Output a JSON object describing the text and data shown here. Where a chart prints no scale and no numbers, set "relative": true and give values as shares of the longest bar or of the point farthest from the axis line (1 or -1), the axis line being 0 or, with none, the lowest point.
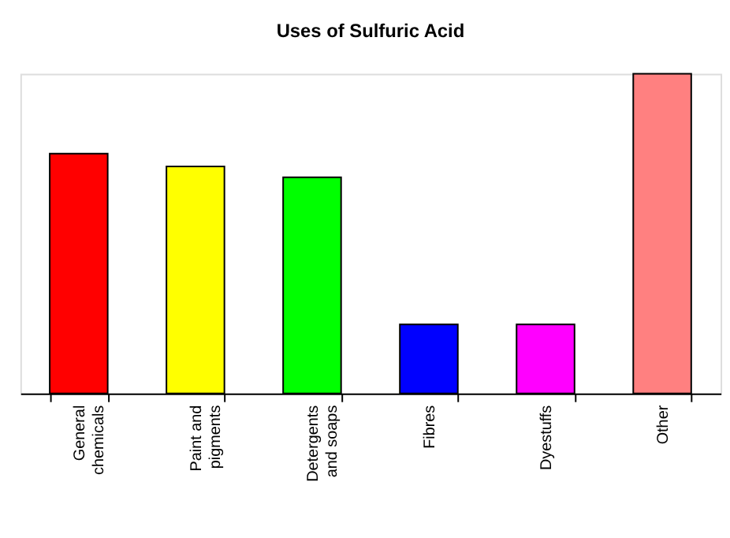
{
  "chart_data": {
    "type": "bar",
    "title": "Uses of Sulfuric Acid",
    "relative": true,
    "categories": [
      "General chemicals",
      "Paint and pigments",
      "Detergents and soaps",
      "Fibres",
      "Dyestuffs",
      "Other"
    ],
    "values": [
      0.75,
      0.71,
      0.676,
      0.216,
      0.216,
      1
    ],
    "colors": [
      "#ff0000",
      "#ffff00",
      "#00ff00",
      "#0000ff",
      "#ff00ff",
      "#ff8080"
    ],
    "grid": false,
    "legend": false
  }
}
